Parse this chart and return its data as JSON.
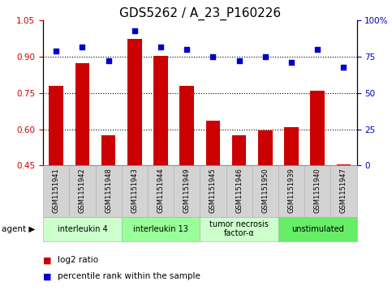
{
  "title": "GDS5262 / A_23_P160226",
  "samples": [
    "GSM1151941",
    "GSM1151942",
    "GSM1151948",
    "GSM1151943",
    "GSM1151944",
    "GSM1151949",
    "GSM1151945",
    "GSM1151946",
    "GSM1151950",
    "GSM1151939",
    "GSM1151940",
    "GSM1151947"
  ],
  "log2_ratio": [
    0.78,
    0.875,
    0.575,
    0.975,
    0.905,
    0.78,
    0.635,
    0.575,
    0.595,
    0.61,
    0.76,
    0.455
  ],
  "percentile_rank": [
    79,
    82,
    72,
    93,
    82,
    80,
    75,
    72,
    75,
    71,
    80,
    68
  ],
  "ylim_left": [
    0.45,
    1.05
  ],
  "ylim_right": [
    0,
    100
  ],
  "yticks_left": [
    0.45,
    0.6,
    0.75,
    0.9,
    1.05
  ],
  "yticks_right": [
    0,
    25,
    50,
    75,
    100
  ],
  "bar_color": "#cc0000",
  "dot_color": "#0000cc",
  "agent_groups": [
    {
      "label": "interleukin 4",
      "start": 0,
      "end": 3,
      "color": "#ccffcc"
    },
    {
      "label": "interleukin 13",
      "start": 3,
      "end": 6,
      "color": "#99ff99"
    },
    {
      "label": "tumor necrosis\nfactor-α",
      "start": 6,
      "end": 9,
      "color": "#ccffcc"
    },
    {
      "label": "unstimulated",
      "start": 9,
      "end": 12,
      "color": "#66ee66"
    }
  ],
  "legend_bar_label": "log2 ratio",
  "legend_dot_label": "percentile rank within the sample",
  "title_fontsize": 11,
  "tick_fontsize": 7.5,
  "bar_bottom": 0.45
}
